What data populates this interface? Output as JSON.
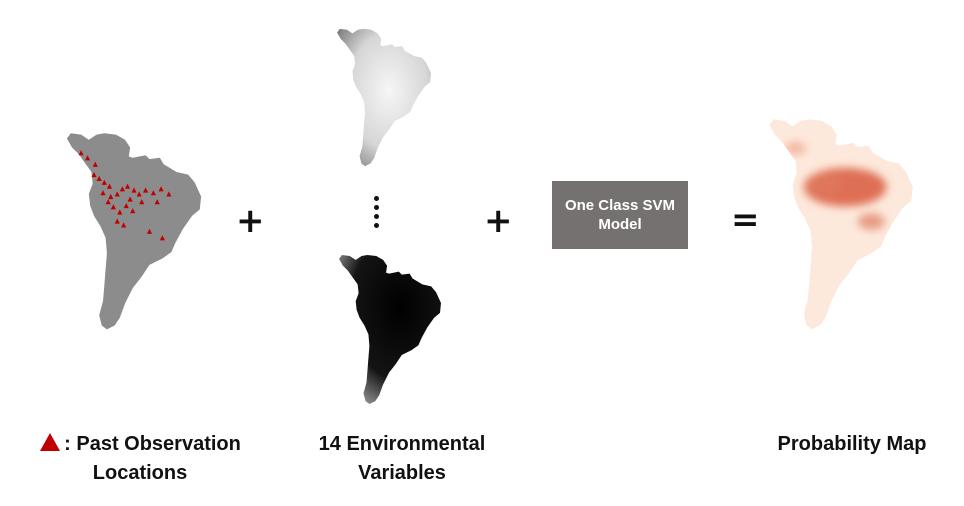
{
  "operators": {
    "plus1": "+",
    "plus2": "+",
    "equals": "="
  },
  "model": {
    "line1": "One Class SVM",
    "line2": "Model"
  },
  "captions": {
    "observations_line1": ": Past Observation",
    "observations_line2": "Locations",
    "env_line1": "14 Environmental",
    "env_line2": "Variables",
    "probability": "Probability Map"
  },
  "colors": {
    "observation_map": "#8c8c8c",
    "observation_marker": "#c00000",
    "model_box": "#767171",
    "probability_low": "#fde9dc",
    "probability_high": "#d9593d"
  },
  "icons": {
    "marker": "triangle-marker-icon"
  }
}
